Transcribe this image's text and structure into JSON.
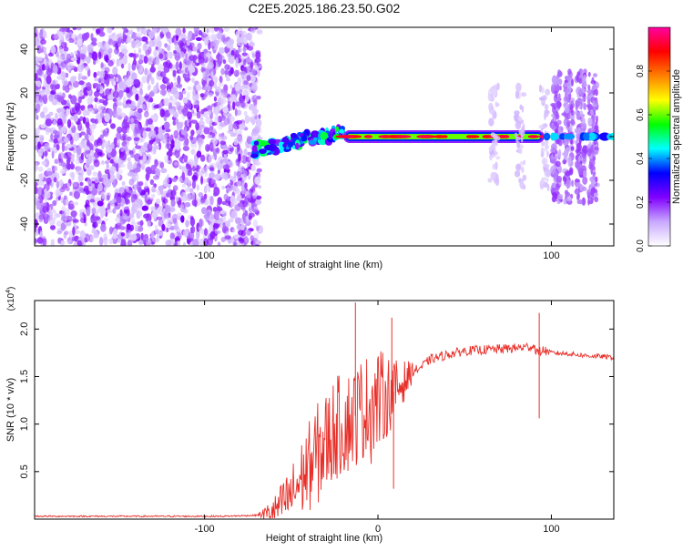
{
  "title": "C2E5.2025.186.23.50.G02",
  "chart_data": [
    {
      "type": "heatmap",
      "title": "C2E5.2025.186.23.50.G02",
      "xlabel": "Height of straight line (km)",
      "ylabel": "Frequency (Hz)",
      "xlim": [
        -198,
        136
      ],
      "ylim": [
        -50,
        50
      ],
      "x_ticks": [
        -100,
        100
      ],
      "y_ticks": [
        -40,
        -20,
        0,
        20,
        40
      ],
      "colorbar": {
        "label": "Normalized spectral amplitude",
        "range": [
          0,
          1
        ],
        "ticks": [
          0.0,
          0.2,
          0.4,
          0.6,
          0.8
        ],
        "colormap": [
          "#ffffff",
          "#c8a8ff",
          "#8000ff",
          "#0000ff",
          "#00ffff",
          "#00ff00",
          "#ffff00",
          "#ff8000",
          "#ff0000",
          "#ff00a0"
        ]
      },
      "regions": [
        {
          "name": "noise",
          "x": [
            -198,
            -68
          ],
          "f": [
            -50,
            50
          ],
          "amplitude": 0.15
        },
        {
          "name": "rising-trace",
          "x": [
            -72,
            -20
          ],
          "f_start": -6,
          "f_end": 2,
          "amplitude": 0.45
        },
        {
          "name": "steady-trace",
          "x": [
            -20,
            96
          ],
          "f": 0,
          "amplitude": 0.95
        },
        {
          "name": "post-trace",
          "x": [
            96,
            136
          ],
          "f": 0,
          "amplitude": 0.35
        }
      ]
    },
    {
      "type": "line",
      "xlabel": "Height of straight line (km)",
      "ylabel": "SNR (10 * v/v)",
      "multiplier": "(x10^4)",
      "xlim": [
        -198,
        136
      ],
      "ylim": [
        0,
        2.3
      ],
      "x_ticks": [
        -100,
        0,
        100
      ],
      "y_ticks": [
        0.5,
        1.0,
        1.5,
        2.0
      ],
      "line_color": "#e8302a",
      "series": [
        {
          "x": [
            -198,
            -160,
            -120,
            -90,
            -70,
            -60,
            -50,
            -40,
            -30,
            -25,
            -20,
            -15,
            -10,
            -5,
            0,
            5,
            10,
            15,
            20,
            25,
            30,
            40,
            50,
            60,
            70,
            80,
            85,
            90,
            92,
            95,
            100,
            110,
            120,
            130,
            136
          ],
          "y": [
            0.03,
            0.03,
            0.03,
            0.03,
            0.04,
            0.08,
            0.25,
            0.55,
            0.8,
            0.95,
            1.0,
            1.05,
            1.15,
            1.2,
            1.25,
            1.3,
            1.35,
            1.45,
            1.55,
            1.6,
            1.68,
            1.73,
            1.77,
            1.78,
            1.79,
            1.8,
            1.81,
            1.82,
            1.75,
            1.78,
            1.75,
            1.74,
            1.72,
            1.71,
            1.7
          ]
        }
      ],
      "annotations": [
        {
          "x": -13,
          "y": 2.28
        },
        {
          "x": 8,
          "y": 2.12
        },
        {
          "x": 9,
          "y": 0.32
        },
        {
          "x": 93,
          "y": 2.17
        },
        {
          "x": 93,
          "y": 1.06
        }
      ]
    }
  ]
}
